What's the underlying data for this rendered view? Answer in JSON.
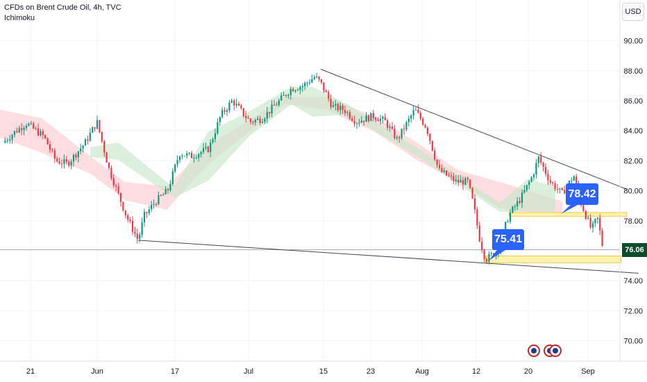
{
  "header": {
    "symbol_title": "CFDs on Brent Crude Oil, 4h, TVC",
    "indicator": "Ichimoku"
  },
  "currency_button": "USD",
  "last_price_label": "76.06",
  "callouts": {
    "upper": "78.42",
    "lower": "75.41"
  },
  "colors": {
    "bull": "#089981",
    "bear": "#f23645",
    "cloud_bull": "#c8e6c9",
    "cloud_bear": "#ffcdd2",
    "zone": "#fff3b0",
    "zone_border": "#f5c842",
    "callout": "#2962ff",
    "trendline": "#434651",
    "price_label_bg": "#0b4d2b"
  },
  "chart_data": {
    "type": "candlestick",
    "title": "CFDs on Brent Crude Oil, 4h, TVC",
    "indicator": "Ichimoku",
    "y_axis": {
      "ticks": [
        "90.00",
        "88.00",
        "86.00",
        "84.00",
        "82.00",
        "80.00",
        "78.00",
        "76.00",
        "74.00",
        "72.00",
        "70.00"
      ],
      "range": [
        68.7,
        92.4
      ]
    },
    "x_axis": {
      "ticks": [
        "21",
        "Jun",
        "17",
        "Jul",
        "15",
        "23",
        "Aug",
        "12",
        "20",
        "Sep"
      ]
    },
    "last_price": 76.06,
    "price_path": [
      [
        "2024-05-13",
        83.2
      ],
      [
        "2024-05-15",
        83.9
      ],
      [
        "2024-05-17",
        84.5
      ],
      [
        "2024-05-20",
        83.6
      ],
      [
        "2024-05-22",
        82.0
      ],
      [
        "2024-05-24",
        81.8
      ],
      [
        "2024-05-27",
        83.2
      ],
      [
        "2024-05-29",
        84.6
      ],
      [
        "2024-05-31",
        81.5
      ],
      [
        "2024-06-03",
        78.3
      ],
      [
        "2024-06-04",
        77.5
      ],
      [
        "2024-06-05",
        76.7
      ],
      [
        "2024-06-06",
        78.3
      ],
      [
        "2024-06-08",
        79.3
      ],
      [
        "2024-06-10",
        80.0
      ],
      [
        "2024-06-12",
        82.5
      ],
      [
        "2024-06-14",
        82.3
      ],
      [
        "2024-06-17",
        82.8
      ],
      [
        "2024-06-19",
        85.0
      ],
      [
        "2024-06-21",
        86.0
      ],
      [
        "2024-06-24",
        84.6
      ],
      [
        "2024-06-26",
        84.8
      ],
      [
        "2024-06-28",
        85.6
      ],
      [
        "2024-07-01",
        86.8
      ],
      [
        "2024-07-03",
        87.0
      ],
      [
        "2024-07-05",
        87.6
      ],
      [
        "2024-07-06",
        87.2
      ],
      [
        "2024-07-08",
        85.6
      ],
      [
        "2024-07-10",
        85.4
      ],
      [
        "2024-07-12",
        84.6
      ],
      [
        "2024-07-15",
        85.0
      ],
      [
        "2024-07-17",
        84.6
      ],
      [
        "2024-07-19",
        83.4
      ],
      [
        "2024-07-22",
        85.4
      ],
      [
        "2024-07-24",
        84.2
      ],
      [
        "2024-07-26",
        81.4
      ],
      [
        "2024-07-29",
        80.6
      ],
      [
        "2024-07-31",
        80.6
      ],
      [
        "2024-08-01",
        79.0
      ],
      [
        "2024-08-02",
        76.8
      ],
      [
        "2024-08-03",
        75.4
      ],
      [
        "2024-08-05",
        76.0
      ],
      [
        "2024-08-07",
        78.4
      ],
      [
        "2024-08-09",
        79.5
      ],
      [
        "2024-08-11",
        81.0
      ],
      [
        "2024-08-12",
        82.2
      ],
      [
        "2024-08-14",
        80.6
      ],
      [
        "2024-08-16",
        79.8
      ],
      [
        "2024-08-18",
        81.0
      ],
      [
        "2024-08-19",
        79.4
      ],
      [
        "2024-08-20",
        78.4
      ],
      [
        "2024-08-21",
        77.4
      ],
      [
        "2024-08-22",
        78.2
      ],
      [
        "2024-08-23",
        76.06
      ]
    ],
    "trendlines": [
      {
        "name": "descending resistance",
        "from": [
          "2024-07-06",
          88.1
        ],
        "to": [
          "2024-08-27",
          80.1
        ]
      },
      {
        "name": "support",
        "from": [
          "2024-06-05",
          76.7
        ],
        "to": [
          "2024-08-29",
          74.5
        ]
      }
    ],
    "zones": [
      {
        "from": "2024-08-07",
        "to": "2024-08-27",
        "low": 78.3,
        "high": 78.55
      },
      {
        "from": "2024-08-03",
        "to": "2024-08-26",
        "low": 75.2,
        "high": 75.65
      }
    ],
    "grid": true,
    "legend": "none"
  }
}
